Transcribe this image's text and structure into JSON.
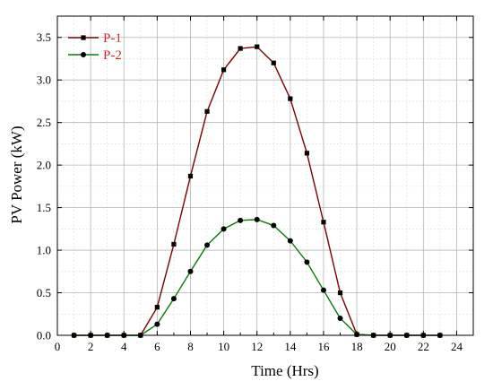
{
  "chart_data": {
    "type": "line",
    "xlabel": "Time (Hrs)",
    "ylabel": "PV Power (kW)",
    "xlim": [
      0,
      25
    ],
    "ylim": [
      0,
      3.75
    ],
    "xticks": [
      0,
      2,
      4,
      6,
      8,
      10,
      12,
      14,
      16,
      18,
      20,
      22,
      24
    ],
    "yticks": [
      0.0,
      0.5,
      1.0,
      1.5,
      2.0,
      2.5,
      3.0,
      3.5
    ],
    "xtick_labels": [
      "0",
      "2",
      "4",
      "6",
      "8",
      "10",
      "12",
      "14",
      "16",
      "18",
      "20",
      "22",
      "24"
    ],
    "ytick_labels": [
      "0.0",
      "0.5",
      "1.0",
      "1.5",
      "2.0",
      "2.5",
      "3.0",
      "3.5"
    ],
    "grid": true,
    "minor_grid": true,
    "legend_position": "top-left",
    "legend_color": "#d62728",
    "x": [
      1,
      2,
      3,
      4,
      5,
      6,
      7,
      8,
      9,
      10,
      11,
      12,
      13,
      14,
      15,
      16,
      17,
      18,
      19,
      20,
      21,
      22,
      23
    ],
    "series": [
      {
        "name": "P-1",
        "color": "#7b0000",
        "marker": "square",
        "values": [
          0,
          0,
          0,
          0,
          0,
          0.33,
          1.07,
          1.87,
          2.63,
          3.12,
          3.37,
          3.39,
          3.2,
          2.78,
          2.14,
          1.33,
          0.5,
          0.01,
          0,
          0,
          0,
          0,
          0
        ]
      },
      {
        "name": "P-2",
        "color": "#0a7a0a",
        "marker": "circle",
        "values": [
          0,
          0,
          0,
          0,
          0,
          0.13,
          0.43,
          0.75,
          1.06,
          1.25,
          1.35,
          1.36,
          1.29,
          1.11,
          0.86,
          0.53,
          0.2,
          0.01,
          0,
          0,
          0,
          0,
          0
        ]
      }
    ]
  }
}
